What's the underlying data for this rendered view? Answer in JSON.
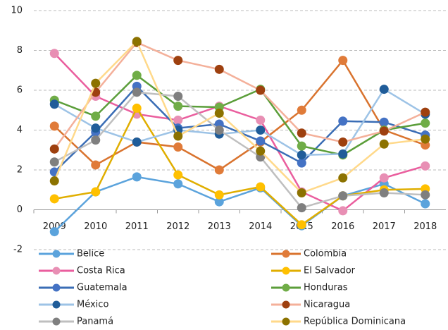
{
  "chart_data": {
    "type": "line",
    "categories": [
      "2009",
      "2010",
      "2011",
      "2012",
      "2013",
      "2014",
      "2015",
      "2016",
      "2017",
      "2018"
    ],
    "ylim": [
      -2,
      10
    ],
    "yticks": [
      -2,
      0,
      2,
      4,
      6,
      8,
      10
    ],
    "grid": true,
    "series": [
      {
        "name": "Belice",
        "color": "#5ba3dc",
        "marker": "#5ba3dc",
        "values": [
          -1.1,
          0.9,
          1.65,
          1.3,
          0.4,
          1.1,
          -0.8,
          0.7,
          1.3,
          0.3
        ]
      },
      {
        "name": "Colombia",
        "color": "#d9732e",
        "marker": "#e07b39",
        "values": [
          4.2,
          2.25,
          3.4,
          3.15,
          2.0,
          3.4,
          5.0,
          7.5,
          4.0,
          3.25
        ]
      },
      {
        "name": "Costa Rica",
        "color": "#ea5e9e",
        "marker": "#e88fb4",
        "values": [
          7.85,
          5.7,
          4.8,
          4.5,
          5.2,
          4.5,
          0.9,
          -0.05,
          1.6,
          2.2
        ]
      },
      {
        "name": "El Salvador",
        "color": "#e0ae00",
        "marker": "#ffc000",
        "values": [
          0.55,
          0.9,
          5.1,
          1.75,
          0.75,
          1.15,
          -0.75,
          0.7,
          1.0,
          1.05
        ]
      },
      {
        "name": "Guatemala",
        "color": "#3a6db5",
        "marker": "#4472c4",
        "values": [
          1.9,
          3.9,
          6.2,
          4.1,
          4.3,
          3.45,
          2.35,
          4.45,
          4.4,
          3.75
        ]
      },
      {
        "name": "Honduras",
        "color": "#5b9e3a",
        "marker": "#70ad47",
        "values": [
          5.5,
          4.7,
          6.75,
          5.2,
          5.15,
          6.05,
          3.2,
          2.75,
          4.0,
          4.35
        ]
      },
      {
        "name": "México",
        "color": "#9dc3e6",
        "marker": "#1f5c99",
        "values": [
          5.3,
          4.1,
          3.4,
          4.0,
          3.8,
          4.0,
          2.75,
          2.8,
          6.05,
          4.8
        ]
      },
      {
        "name": "Nicaragua",
        "color": "#f4b09a",
        "marker": "#9e400f",
        "values": [
          3.05,
          5.9,
          8.4,
          7.5,
          7.05,
          6.0,
          3.85,
          3.4,
          3.95,
          4.9
        ]
      },
      {
        "name": "Panamá",
        "color": "#bfbfbf",
        "marker": "#7f7f7f",
        "values": [
          2.4,
          3.5,
          5.9,
          5.7,
          4.0,
          2.65,
          0.1,
          0.7,
          0.85,
          0.75
        ]
      },
      {
        "name": "República Dominicana",
        "color": "#ffd98a",
        "marker": "#8c7200",
        "values": [
          1.45,
          6.35,
          8.45,
          3.7,
          4.85,
          2.95,
          0.85,
          1.6,
          3.3,
          3.55
        ]
      }
    ]
  }
}
